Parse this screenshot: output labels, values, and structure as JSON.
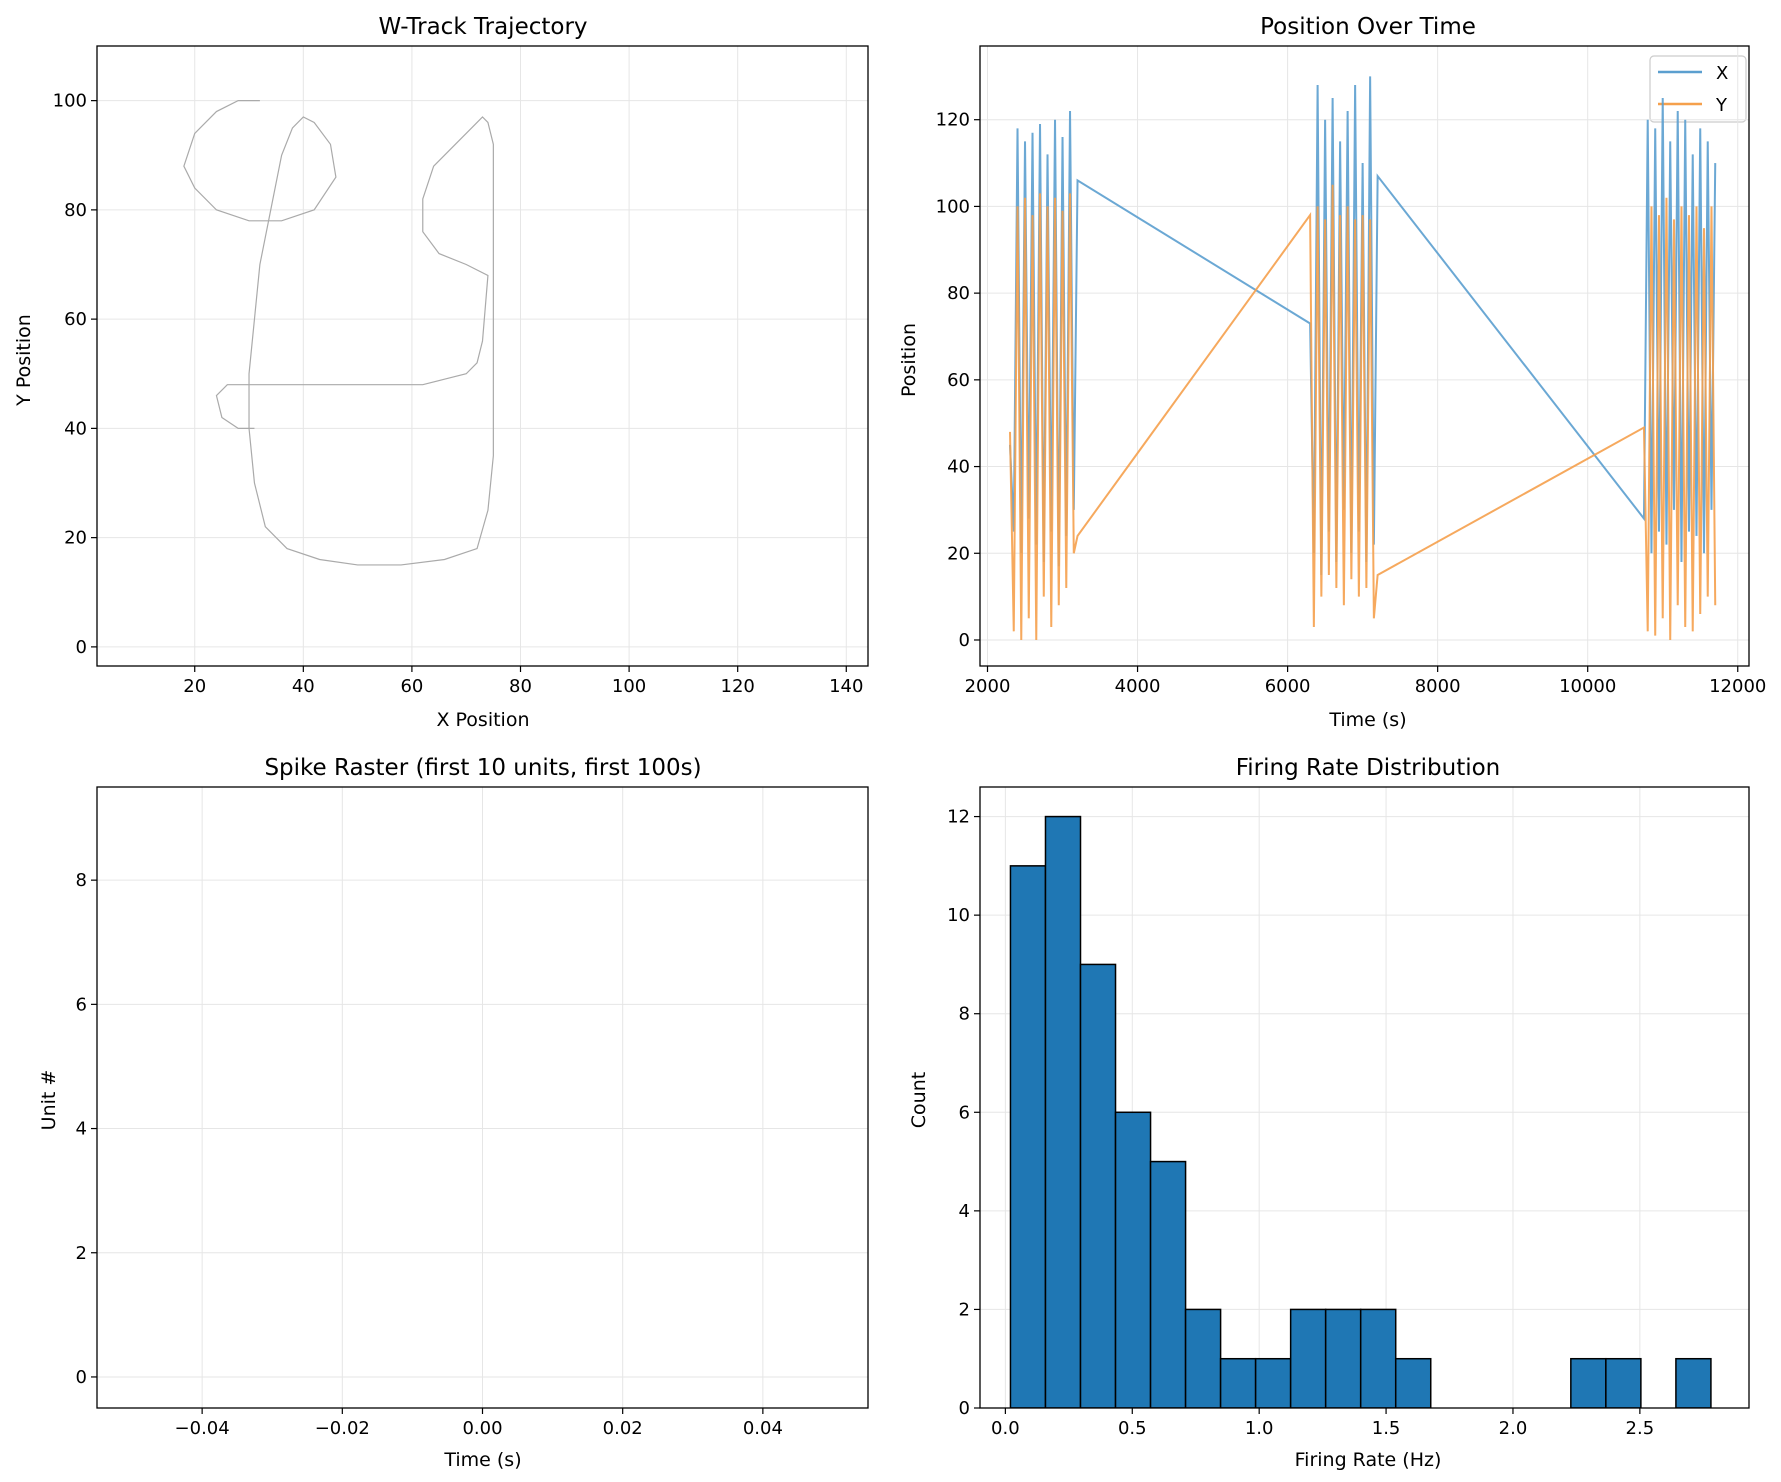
{
  "chart_data": [
    {
      "id": "trajectory",
      "type": "line",
      "title": "W-Track Trajectory",
      "xlabel": "X Position",
      "ylabel": "Y Position",
      "xlim": [
        2,
        144
      ],
      "ylim": [
        -3.5,
        110
      ],
      "xticks": [
        20,
        40,
        60,
        80,
        100,
        120,
        140
      ],
      "yticks": [
        0,
        20,
        40,
        60,
        80,
        100
      ],
      "grid": true,
      "color": "#aaaaaa",
      "series": [
        {
          "x": [
            32,
            28,
            24,
            20,
            18,
            20,
            24,
            30,
            36,
            42,
            46,
            45,
            42,
            40,
            38,
            36,
            34,
            32,
            31,
            30,
            30,
            31,
            33,
            37,
            43,
            50,
            58,
            66,
            72,
            74,
            75,
            75,
            75,
            75,
            75,
            75,
            75,
            74,
            73,
            72,
            68,
            64,
            62,
            62,
            65,
            70,
            74,
            73,
            72,
            70,
            66,
            62,
            58,
            54,
            50,
            46,
            42,
            36,
            30,
            26,
            24,
            25,
            28,
            31
          ]
        },
        {
          "y": [
            100,
            100,
            98,
            94,
            88,
            84,
            80,
            78,
            78,
            80,
            86,
            92,
            96,
            97,
            95,
            90,
            80,
            70,
            60,
            50,
            40,
            30,
            22,
            18,
            16,
            15,
            15,
            16,
            18,
            25,
            35,
            45,
            55,
            65,
            75,
            85,
            92,
            96,
            97,
            96,
            92,
            88,
            82,
            76,
            72,
            70,
            68,
            56,
            52,
            50,
            49,
            48,
            48,
            48,
            48,
            48,
            48,
            48,
            48,
            48,
            46,
            42,
            40,
            40
          ]
        }
      ]
    },
    {
      "id": "position-time",
      "type": "line",
      "title": "Position Over Time",
      "xlabel": "Time (s)",
      "ylabel": "Position",
      "xlim": [
        1900,
        12150
      ],
      "ylim": [
        -6,
        137
      ],
      "xticks": [
        2000,
        4000,
        6000,
        8000,
        10000,
        12000
      ],
      "yticks": [
        0,
        20,
        40,
        60,
        80,
        100,
        120
      ],
      "grid": true,
      "legend": "top-right",
      "series": [
        {
          "name": "X",
          "color": "#5b9fcf",
          "x": [
            2300,
            2350,
            2400,
            2450,
            2500,
            2550,
            2600,
            2650,
            2700,
            2750,
            2800,
            2850,
            2900,
            2950,
            3000,
            3050,
            3100,
            3150,
            3200,
            6300,
            6350,
            6400,
            6450,
            6500,
            6550,
            6600,
            6650,
            6700,
            6750,
            6800,
            6850,
            6900,
            6950,
            7000,
            7050,
            7100,
            7150,
            7200,
            10750,
            10800,
            10850,
            10900,
            10950,
            11000,
            11050,
            11100,
            11150,
            11200,
            11250,
            11300,
            11350,
            11400,
            11450,
            11500,
            11550,
            11600,
            11650,
            11700
          ],
          "y": [
            45,
            25,
            118,
            20,
            115,
            28,
            117,
            22,
            119,
            18,
            112,
            25,
            120,
            17,
            116,
            24,
            122,
            30,
            106,
            73,
            20,
            128,
            15,
            120,
            25,
            125,
            18,
            115,
            30,
            122,
            20,
            128,
            25,
            110,
            18,
            130,
            22,
            107,
            28,
            120,
            20,
            118,
            25,
            125,
            22,
            115,
            30,
            122,
            18,
            120,
            25,
            112,
            24,
            118,
            20,
            115,
            30,
            110
          ]
        },
        {
          "name": "Y",
          "color": "#f5a04c",
          "x": [
            2300,
            2350,
            2400,
            2450,
            2500,
            2550,
            2600,
            2650,
            2700,
            2750,
            2800,
            2850,
            2900,
            2950,
            3000,
            3050,
            3100,
            3150,
            3200,
            6300,
            6350,
            6400,
            6450,
            6500,
            6550,
            6600,
            6650,
            6700,
            6750,
            6800,
            6850,
            6900,
            6950,
            7000,
            7050,
            7100,
            7150,
            7200,
            10750,
            10800,
            10850,
            10900,
            10950,
            11000,
            11050,
            11100,
            11150,
            11200,
            11250,
            11300,
            11350,
            11400,
            11450,
            11500,
            11550,
            11600,
            11650,
            11700
          ],
          "y": [
            48,
            2,
            100,
            0,
            102,
            5,
            98,
            0,
            103,
            10,
            100,
            3,
            102,
            8,
            99,
            12,
            103,
            20,
            24,
            98,
            3,
            100,
            10,
            97,
            15,
            105,
            12,
            98,
            8,
            100,
            14,
            97,
            10,
            98,
            12,
            97,
            5,
            15,
            49,
            2,
            100,
            1,
            98,
            5,
            102,
            0,
            97,
            8,
            100,
            3,
            98,
            2,
            100,
            6,
            95,
            10,
            100,
            8
          ]
        }
      ]
    },
    {
      "id": "raster",
      "type": "scatter",
      "title": "Spike Raster (first 10 units, first 100s)",
      "xlabel": "Time (s)",
      "ylabel": "Unit #",
      "xlim": [
        -0.055,
        0.055
      ],
      "ylim": [
        -0.5,
        9.5
      ],
      "xticks": [
        -0.04,
        -0.02,
        0.0,
        0.02,
        0.04
      ],
      "xtick_labels": [
        "−0.04",
        "−0.02",
        "0.00",
        "0.02",
        "0.04"
      ],
      "yticks": [
        0,
        2,
        4,
        6,
        8
      ],
      "grid": true,
      "series": []
    },
    {
      "id": "histogram",
      "type": "bar",
      "title": "Firing Rate Distribution",
      "xlabel": "Firing Rate (Hz)",
      "ylabel": "Count",
      "xlim": [
        -0.1,
        2.93
      ],
      "ylim": [
        0,
        12.6
      ],
      "xticks": [
        0.0,
        0.5,
        1.0,
        1.5,
        2.0,
        2.5
      ],
      "xtick_labels": [
        "0.0",
        "0.5",
        "1.0",
        "1.5",
        "2.0",
        "2.5"
      ],
      "yticks": [
        0,
        2,
        4,
        6,
        8,
        10,
        12
      ],
      "grid": true,
      "color": "#1f77b4",
      "bin_edges": [
        0.02,
        0.158,
        0.296,
        0.434,
        0.572,
        0.71,
        0.848,
        0.986,
        1.124,
        1.262,
        1.4,
        1.538,
        1.676,
        1.814,
        1.952,
        2.09,
        2.228,
        2.366,
        2.504,
        2.642,
        2.78
      ],
      "values": [
        11,
        12,
        9,
        6,
        5,
        2,
        1,
        1,
        2,
        2,
        2,
        1,
        0,
        0,
        0,
        0,
        1,
        1,
        0,
        1
      ]
    }
  ]
}
